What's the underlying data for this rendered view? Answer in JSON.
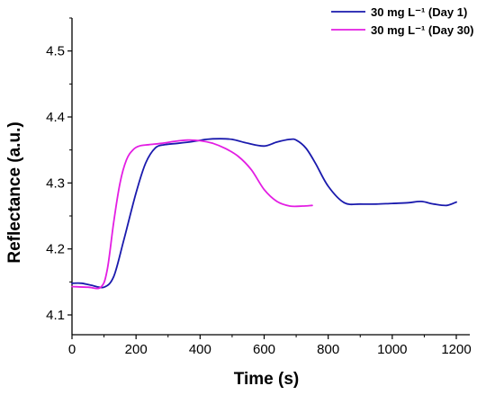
{
  "chart_data": {
    "type": "line",
    "title": "",
    "xlabel": "Time (s)",
    "ylabel": "Reflectance (a.u.)",
    "xlim": [
      0,
      1200
    ],
    "ylim": [
      4.07,
      4.55
    ],
    "xticks": [
      0,
      200,
      400,
      600,
      800,
      1000,
      1200
    ],
    "yticks": [
      4.1,
      4.2,
      4.3,
      4.4,
      4.5
    ],
    "xtick_labels": [
      "0",
      "200",
      "400",
      "600",
      "800",
      "1000",
      "1200"
    ],
    "ytick_labels": [
      "4.1",
      "4.2",
      "4.3",
      "4.4",
      "4.5"
    ],
    "grid": false,
    "legend_position": "top-right",
    "series": [
      {
        "name": "30 mg L⁻¹ (Day 1)",
        "color": "#1a1aad",
        "x": [
          0,
          30,
          60,
          100,
          130,
          160,
          200,
          230,
          260,
          290,
          330,
          380,
          420,
          460,
          500,
          550,
          600,
          640,
          680,
          700,
          730,
          760,
          800,
          850,
          900,
          950,
          1000,
          1050,
          1090,
          1130,
          1170,
          1200
        ],
        "y": [
          4.148,
          4.148,
          4.145,
          4.142,
          4.158,
          4.21,
          4.285,
          4.33,
          4.353,
          4.358,
          4.36,
          4.363,
          4.366,
          4.367,
          4.366,
          4.36,
          4.356,
          4.362,
          4.366,
          4.365,
          4.353,
          4.33,
          4.295,
          4.27,
          4.268,
          4.268,
          4.269,
          4.27,
          4.272,
          4.268,
          4.266,
          4.271
        ]
      },
      {
        "name": "30 mg L⁻¹ (Day 30)",
        "color": "#e31ee3",
        "x": [
          0,
          50,
          90,
          110,
          130,
          150,
          170,
          190,
          210,
          240,
          280,
          320,
          360,
          400,
          440,
          480,
          520,
          560,
          600,
          640,
          680,
          720,
          750
        ],
        "y": [
          4.143,
          4.142,
          4.142,
          4.168,
          4.24,
          4.3,
          4.335,
          4.35,
          4.356,
          4.358,
          4.36,
          4.363,
          4.365,
          4.364,
          4.36,
          4.352,
          4.34,
          4.32,
          4.29,
          4.272,
          4.265,
          4.265,
          4.266
        ]
      }
    ]
  }
}
